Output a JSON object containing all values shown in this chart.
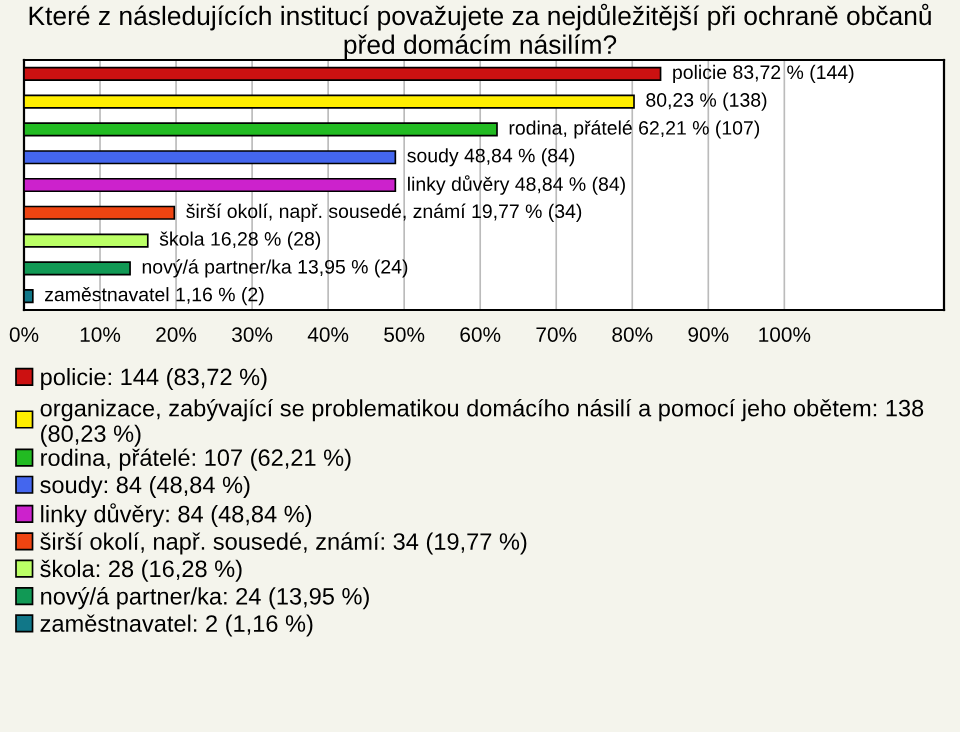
{
  "chart_data": {
    "type": "bar",
    "orientation": "horizontal",
    "stacked": true,
    "title": "Které z následujících institucí považujete za nejdůležitější při ochraně občanů před domácím násilím?",
    "categories": [
      null,
      null,
      null,
      null,
      null,
      null,
      null,
      null,
      null
    ],
    "series": [
      {
        "name": "policie: 144 (83,72 %)",
        "color": "#cc1111",
        "values": [
          83.72,
          null,
          null,
          null,
          null,
          null,
          null,
          null,
          null
        ],
        "value_labels": [
          "policie 83,72 % (144)",
          null,
          null,
          null,
          null,
          null,
          null,
          null,
          null
        ]
      },
      {
        "name": "organizace, zabývající se problematikou domácího násilí a pomocí jeho obětem: 138 (80,23 %)",
        "color": "#ffee00",
        "values": [
          null,
          80.23,
          null,
          null,
          null,
          null,
          null,
          null,
          null
        ],
        "value_labels": [
          null,
          "80,23 % (138)",
          null,
          null,
          null,
          null,
          null,
          null,
          null
        ]
      },
      {
        "name": "rodina, přátelé: 107 (62,21 %)",
        "color": "#22bb22",
        "values": [
          null,
          null,
          62.21,
          null,
          null,
          null,
          null,
          null,
          null
        ],
        "value_labels": [
          null,
          null,
          "rodina, přátelé 62,21 % (107)",
          null,
          null,
          null,
          null,
          null,
          null
        ]
      },
      {
        "name": "soudy: 84 (48,84 %)",
        "color": "#4466ee",
        "values": [
          null,
          null,
          null,
          48.84,
          null,
          null,
          null,
          null,
          null
        ],
        "value_labels": [
          null,
          null,
          null,
          "soudy 48,84 % (84)",
          null,
          null,
          null,
          null,
          null
        ]
      },
      {
        "name": "linky důvěry: 84 (48,84 %)",
        "color": "#cc22cc",
        "values": [
          null,
          null,
          null,
          null,
          48.84,
          null,
          null,
          null,
          null
        ],
        "value_labels": [
          null,
          null,
          null,
          null,
          "linky důvěry 48,84 % (84)",
          null,
          null,
          null,
          null
        ]
      },
      {
        "name": "širší okolí, např. sousedé, známí: 34 (19,77 %)",
        "color": "#ee4411",
        "values": [
          null,
          null,
          null,
          null,
          null,
          19.77,
          null,
          null,
          null
        ],
        "value_labels": [
          null,
          null,
          null,
          null,
          null,
          "širší okolí, např. sousedé, známí 19,77 % (34)",
          null,
          null,
          null
        ]
      },
      {
        "name": "škola: 28 (16,28 %)",
        "color": "#bbff66",
        "values": [
          null,
          null,
          null,
          null,
          null,
          null,
          16.28,
          null,
          null
        ],
        "value_labels": [
          null,
          null,
          null,
          null,
          null,
          null,
          "škola 16,28 % (28)",
          null,
          null
        ]
      },
      {
        "name": "nový/á partner/ka: 24 (13,95 %)",
        "color": "#119955",
        "values": [
          null,
          null,
          null,
          null,
          null,
          null,
          null,
          13.95,
          null
        ],
        "value_labels": [
          null,
          null,
          null,
          null,
          null,
          null,
          null,
          "nový/á partner/ka 13,95 % (24)",
          null
        ]
      },
      {
        "name": "zaměstnavatel: 2 (1,16 %)",
        "color": "#117788",
        "values": [
          null,
          null,
          null,
          null,
          null,
          null,
          null,
          null,
          1.16
        ],
        "value_labels": [
          null,
          null,
          null,
          null,
          null,
          null,
          null,
          null,
          "zaměstnavatel 1,16 % (2)"
        ]
      }
    ],
    "xlim": [
      0,
      121
    ],
    "xticks": [
      {
        "value": 0,
        "label": "0%"
      },
      {
        "value": 10,
        "label": "10%"
      },
      {
        "value": 20,
        "label": "20%"
      },
      {
        "value": 30,
        "label": "30%"
      },
      {
        "value": 40,
        "label": "40%"
      },
      {
        "value": 50,
        "label": "50%"
      },
      {
        "value": 60,
        "label": "60%"
      },
      {
        "value": 70,
        "label": "70%"
      },
      {
        "value": 80,
        "label": "80%"
      },
      {
        "value": 90,
        "label": "90%"
      },
      {
        "value": 100,
        "label": "100%"
      }
    ],
    "grid": "x",
    "tick_labels": "x",
    "legend": "bottom"
  }
}
